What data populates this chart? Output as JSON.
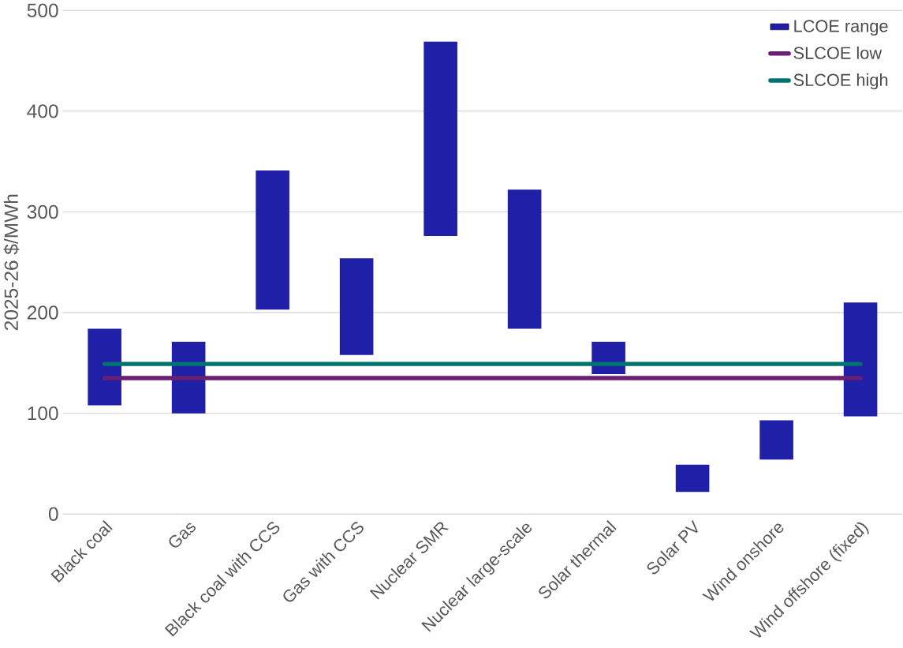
{
  "chart_data": {
    "type": "bar",
    "ylabel": "2025-26 $/MWh",
    "categories": [
      "Black coal",
      "Gas",
      "Black coal with CCS",
      "Gas with CCS",
      "Nuclear SMR",
      "Nuclear large-scale",
      "Solar thermal",
      "Solar PV",
      "Wind onshore",
      "Wind offshore (fixed)"
    ],
    "ylim": [
      0,
      500
    ],
    "yticks": [
      0,
      100,
      200,
      300,
      400,
      500
    ],
    "grid": "y",
    "legend": "top right",
    "series": [
      {
        "name": "LCOE range",
        "color": "#1f1fa8",
        "base": [
          108,
          100,
          203,
          158,
          276,
          184,
          139,
          22,
          54,
          97
        ],
        "values": [
          76,
          71,
          138,
          96,
          193,
          138,
          32,
          27,
          39,
          113
        ]
      },
      {
        "name": "SLCOE low",
        "type": "line",
        "color": "#6b1f74",
        "values": [
          135,
          135,
          135,
          135,
          135,
          135,
          135,
          135,
          135,
          135
        ]
      },
      {
        "name": "SLCOE high",
        "type": "line",
        "color": "#00736e",
        "values": [
          149,
          149,
          149,
          149,
          149,
          149,
          149,
          149,
          149,
          149
        ]
      }
    ]
  }
}
